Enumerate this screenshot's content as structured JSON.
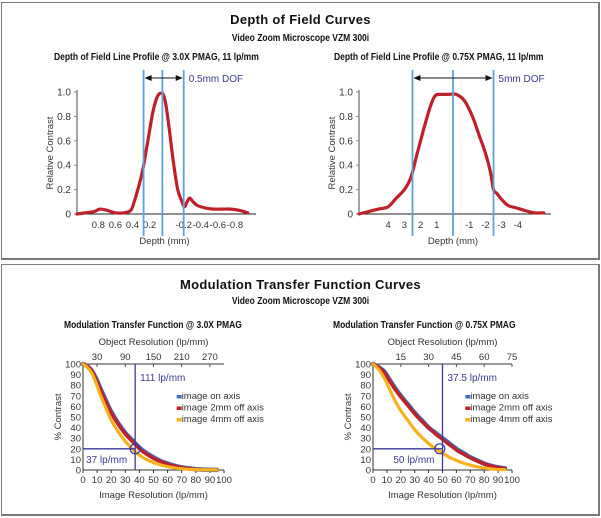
{
  "top_section": {
    "title": "Depth of Field Curves",
    "subtitle": "Video Zoom Microscope VZM 300i"
  },
  "bottom_section": {
    "title": "Modulation Transfer Function Curves",
    "subtitle": "Video Zoom Microscope VZM 300i"
  },
  "colors": {
    "curve_red": "#c0202a",
    "marker_blue": "#5ba3dd",
    "annotation_blue": "#3a3a9a",
    "axis_on": "#3b6fb5",
    "axis_2mm": "#c0202a",
    "axis_4mm": "#f5b21b"
  },
  "chart_data": [
    {
      "type": "line",
      "title": "Depth of Field Line Profile @ 3.0X PMAG, 11 lp/mm",
      "xlabel": "Depth (mm)",
      "ylabel": "Relative Contrast",
      "ylim": [
        0,
        1.0
      ],
      "xlim": [
        1.05,
        -1.0
      ],
      "x_ticks": [
        "0.8",
        "0.6",
        "0.4",
        "0.2",
        "-0.2",
        "-0.4",
        "-0.6",
        "-0.8"
      ],
      "x_tick_values": [
        0.8,
        0.6,
        0.4,
        0.2,
        -0.2,
        -0.4,
        -0.6,
        -0.8
      ],
      "y_ticks": [
        "0",
        "0.2",
        "0.4",
        "0.6",
        "0.8",
        "1.0"
      ],
      "y_tick_values": [
        0,
        0.2,
        0.4,
        0.6,
        0.8,
        1.0
      ],
      "dof_annotation": "0.5mm DOF",
      "dof_lines_x": [
        0.27,
        0.05,
        -0.2
      ],
      "series": [
        {
          "name": "profile",
          "x": [
            1.05,
            0.95,
            0.85,
            0.78,
            0.7,
            0.6,
            0.5,
            0.42,
            0.38,
            0.33,
            0.28,
            0.22,
            0.16,
            0.11,
            0.07,
            0.04,
            0.01,
            -0.03,
            -0.08,
            -0.13,
            -0.18,
            -0.21,
            -0.24,
            -0.27,
            -0.31,
            -0.36,
            -0.45,
            -0.55,
            -0.65,
            -0.75,
            -0.85,
            -0.95
          ],
          "y": [
            0.0,
            0.01,
            0.02,
            0.04,
            0.03,
            0.01,
            0.01,
            0.03,
            0.1,
            0.22,
            0.36,
            0.6,
            0.84,
            0.96,
            0.99,
            0.98,
            0.9,
            0.7,
            0.42,
            0.2,
            0.1,
            0.06,
            0.1,
            0.13,
            0.1,
            0.07,
            0.05,
            0.04,
            0.04,
            0.04,
            0.03,
            0.01
          ]
        }
      ]
    },
    {
      "type": "line",
      "title": "Depth of Field Line Profile @ 0.75X PMAG, 11 lp/mm",
      "xlabel": "Depth (mm)",
      "ylabel": "Relative Contrast",
      "ylim": [
        0,
        1.0
      ],
      "xlim": [
        5.8,
        -5.8
      ],
      "x_ticks": [
        "4",
        "3",
        "2",
        "1",
        "-1",
        "-2",
        "-3",
        "-4"
      ],
      "x_tick_values": [
        4,
        3,
        2,
        1,
        -1,
        -2,
        -3,
        -4
      ],
      "y_ticks": [
        "0",
        "0.2",
        "0.4",
        "0.6",
        "0.8",
        "1.0"
      ],
      "y_tick_values": [
        0,
        0.2,
        0.4,
        0.6,
        0.8,
        1.0
      ],
      "dof_annotation": "5mm DOF",
      "dof_lines_x": [
        2.5,
        0,
        -2.5
      ],
      "series": [
        {
          "name": "profile",
          "x": [
            5.8,
            5.2,
            4.6,
            4.0,
            3.5,
            3.0,
            2.6,
            2.2,
            1.8,
            1.4,
            1.1,
            0.7,
            0.3,
            -0.2,
            -0.7,
            -1.2,
            -1.6,
            -2.0,
            -2.3,
            -2.5,
            -2.7,
            -3.0,
            -3.4,
            -3.9,
            -4.4,
            -5.0,
            -5.6
          ],
          "y": [
            0.0,
            0.02,
            0.04,
            0.06,
            0.13,
            0.2,
            0.3,
            0.5,
            0.7,
            0.88,
            0.97,
            0.98,
            0.98,
            0.98,
            0.93,
            0.8,
            0.65,
            0.5,
            0.35,
            0.2,
            0.17,
            0.12,
            0.07,
            0.05,
            0.03,
            0.01,
            0.01
          ]
        }
      ]
    },
    {
      "type": "line",
      "title": "Modulation Transfer Function @ 3.0X PMAG",
      "xlabel": "Image Resolution (lp/mm)",
      "x2label": "Object Resolution (lp/mm)",
      "ylabel": "% Contrast",
      "xlim": [
        0,
        100
      ],
      "ylim": [
        0,
        100
      ],
      "x_ticks": [
        "0",
        "10",
        "20",
        "30",
        "40",
        "50",
        "60",
        "70",
        "80",
        "90",
        "100"
      ],
      "x_tick_values": [
        0,
        10,
        20,
        30,
        40,
        50,
        60,
        70,
        80,
        90,
        100
      ],
      "x2_ticks": [
        "30",
        "90",
        "150",
        "210",
        "270"
      ],
      "x2_tick_positions": [
        10,
        30,
        50,
        70,
        90
      ],
      "y_ticks": [
        "0",
        "10",
        "20",
        "30",
        "40",
        "50",
        "60",
        "70",
        "80",
        "90",
        "100"
      ],
      "y_tick_values": [
        0,
        10,
        20,
        30,
        40,
        50,
        60,
        70,
        80,
        90,
        100
      ],
      "annotations": {
        "vertical": "111 lp/mm",
        "horizontal": "37 lp/mm",
        "vertical_x": 37,
        "horizontal_y": 20,
        "circle": [
          37,
          20
        ]
      },
      "legend": "right",
      "x": [
        0,
        3,
        6,
        9,
        12,
        16,
        20,
        25,
        30,
        35,
        40,
        45,
        50,
        55,
        60,
        65,
        70,
        75,
        80,
        85,
        90,
        95
      ],
      "series": [
        {
          "name": "image on axis",
          "values": [
            100,
            98,
            94,
            87,
            78,
            66,
            55,
            44,
            35,
            28,
            21,
            16,
            12,
            8.5,
            6,
            4,
            2.5,
            1.5,
            0.8,
            0.4,
            0.2,
            0.1
          ]
        },
        {
          "name": "image 2mm off axis",
          "values": [
            100,
            98,
            94,
            86,
            77,
            65,
            54,
            43,
            34,
            27,
            20,
            15,
            11,
            8,
            5.5,
            3.7,
            2.3,
            1.4,
            0.7,
            0.3,
            0.2,
            0.1
          ]
        },
        {
          "name": "image 4mm off axis",
          "values": [
            100,
            97,
            92,
            83,
            72,
            59,
            47,
            36,
            27,
            20,
            14,
            10,
            7,
            4.8,
            3.2,
            2,
            1.2,
            0.7,
            0.4,
            0.2,
            0.1,
            0.1
          ]
        }
      ]
    },
    {
      "type": "line",
      "title": "Modulation Transfer Function @ 0.75X PMAG",
      "xlabel": "Image Resolution (lp/mm)",
      "x2label": "Object Resolution (lp/mm)",
      "ylabel": "% Contrast",
      "xlim": [
        0,
        100
      ],
      "ylim": [
        0,
        100
      ],
      "x_ticks": [
        "0",
        "10",
        "20",
        "30",
        "40",
        "50",
        "60",
        "70",
        "80",
        "90",
        "100"
      ],
      "x_tick_values": [
        0,
        10,
        20,
        30,
        40,
        50,
        60,
        70,
        80,
        90,
        100
      ],
      "x2_ticks": [
        "15",
        "30",
        "45",
        "60",
        "75"
      ],
      "x2_tick_positions": [
        20,
        40,
        60,
        80,
        100
      ],
      "y_ticks": [
        "0",
        "10",
        "20",
        "30",
        "40",
        "50",
        "60",
        "70",
        "80",
        "90",
        "100"
      ],
      "y_tick_values": [
        0,
        10,
        20,
        30,
        40,
        50,
        60,
        70,
        80,
        90,
        100
      ],
      "annotations": {
        "vertical": "37.5 lp/mm",
        "horizontal": "50 lp/mm",
        "vertical_x": 50,
        "horizontal_y": 20,
        "circle": [
          48,
          20
        ]
      },
      "legend": "right",
      "x": [
        0,
        4,
        8,
        12,
        16,
        20,
        25,
        30,
        35,
        40,
        45,
        50,
        55,
        60,
        65,
        70,
        75,
        80,
        85,
        90,
        95
      ],
      "series": [
        {
          "name": "image on axis",
          "values": [
            100,
            97,
            93,
            85,
            77,
            70,
            62,
            54,
            47,
            40,
            35,
            30,
            25,
            20,
            16,
            12,
            9,
            6,
            4,
            2.5,
            1.5
          ]
        },
        {
          "name": "image 2mm off axis",
          "values": [
            100,
            97,
            92,
            84,
            76,
            69,
            61,
            53,
            46,
            40,
            34,
            29,
            24,
            19,
            15,
            11.5,
            8.5,
            5.8,
            3.8,
            2.3,
            1.3
          ]
        },
        {
          "name": "image 4mm off axis",
          "values": [
            100,
            95,
            87,
            76,
            65,
            56,
            47,
            38,
            31,
            25,
            20,
            16,
            12,
            9,
            6.5,
            4.5,
            3,
            1.8,
            1,
            0.5,
            0.3
          ]
        }
      ]
    }
  ]
}
